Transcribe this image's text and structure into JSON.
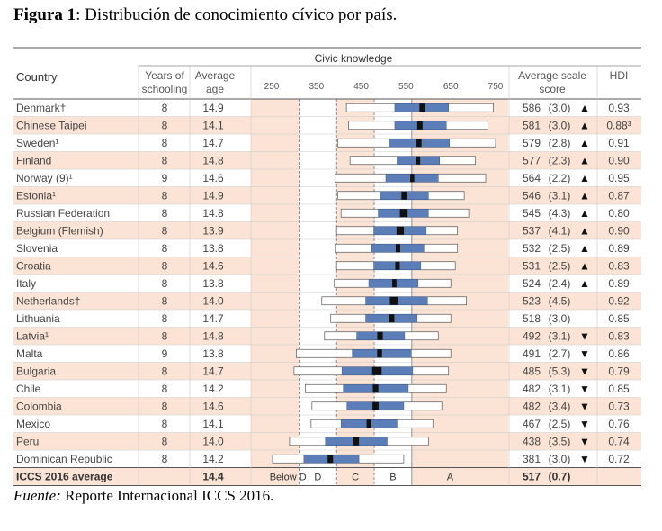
{
  "figure": {
    "label": "Figura 1",
    "title": ": Distribución de conocimiento cívico por país.",
    "source_label": "Fuente:",
    "source_text": " Reporte Internacional ICCS 2016."
  },
  "table": {
    "group_header": "Civic knowledge",
    "col_country": "Country",
    "col_years": [
      "Years of",
      "schooling"
    ],
    "col_age": [
      "Average",
      "age"
    ],
    "col_score": [
      "Average scale",
      "score"
    ],
    "col_hdi": "HDI",
    "axis_ticks": [
      250,
      350,
      450,
      550,
      650,
      750
    ],
    "band_labels": [
      "Below D",
      "D",
      "C",
      "B",
      "A"
    ]
  },
  "chart_data": {
    "type": "table",
    "xlim": [
      250,
      750
    ],
    "legend_colors": {
      "country_highlight": "#fbe4d5",
      "band_shade": "#fbe4d5",
      "confidence_bar": "#5b7db8",
      "mean_marker": "#111111",
      "outer_box": "#ffffff"
    },
    "cut_points": [
      311,
      395,
      479,
      563
    ],
    "rows": [
      {
        "country": "Denmark†",
        "years": "8",
        "age": "14.9",
        "score": "586",
        "se": "(3.0)",
        "sig": "up",
        "hdi": "0.93",
        "highlight": false,
        "p5": 417,
        "p25": 525,
        "p75": 645,
        "p95": 745
      },
      {
        "country": "Chinese Taipei",
        "years": "8",
        "age": "14.1",
        "score": "581",
        "se": "(3.0)",
        "sig": "up",
        "hdi": "0.88³",
        "highlight": true,
        "p5": 422,
        "p25": 525,
        "p75": 640,
        "p95": 733
      },
      {
        "country": "Sweden¹",
        "years": "8",
        "age": "14.7",
        "score": "579",
        "se": "(2.8)",
        "sig": "up",
        "hdi": "0.91",
        "highlight": false,
        "p5": 398,
        "p25": 512,
        "p75": 647,
        "p95": 750
      },
      {
        "country": "Finland",
        "years": "8",
        "age": "14.8",
        "score": "577",
        "se": "(2.3)",
        "sig": "up",
        "hdi": "0.90",
        "highlight": true,
        "p5": 425,
        "p25": 530,
        "p75": 625,
        "p95": 705
      },
      {
        "country": "Norway (9)¹",
        "years": "9",
        "age": "14.6",
        "score": "564",
        "se": "(2.2)",
        "sig": "up",
        "hdi": "0.95",
        "highlight": false,
        "p5": 392,
        "p25": 505,
        "p75": 622,
        "p95": 728
      },
      {
        "country": "Estonia¹",
        "years": "8",
        "age": "14.9",
        "score": "546",
        "se": "(3.1)",
        "sig": "up",
        "hdi": "0.87",
        "highlight": true,
        "p5": 398,
        "p25": 492,
        "p75": 600,
        "p95": 680
      },
      {
        "country": "Russian Federation",
        "years": "8",
        "age": "14.8",
        "score": "545",
        "se": "(4.3)",
        "sig": "up",
        "hdi": "0.80",
        "highlight": false,
        "p5": 405,
        "p25": 488,
        "p75": 600,
        "p95": 690
      },
      {
        "country": "Belgium (Flemish)",
        "years": "8",
        "age": "13.9",
        "score": "537",
        "se": "(4.1)",
        "sig": "up",
        "hdi": "0.90",
        "highlight": true,
        "p5": 395,
        "p25": 478,
        "p75": 595,
        "p95": 665
      },
      {
        "country": "Slovenia",
        "years": "8",
        "age": "13.8",
        "score": "532",
        "se": "(2.5)",
        "sig": "up",
        "hdi": "0.89",
        "highlight": false,
        "p5": 393,
        "p25": 473,
        "p75": 590,
        "p95": 665
      },
      {
        "country": "Croatia",
        "years": "8",
        "age": "14.6",
        "score": "531",
        "se": "(2.5)",
        "sig": "up",
        "hdi": "0.83",
        "highlight": true,
        "p5": 395,
        "p25": 478,
        "p75": 583,
        "p95": 660
      },
      {
        "country": "Italy",
        "years": "8",
        "age": "13.8",
        "score": "524",
        "se": "(2.4)",
        "sig": "up",
        "hdi": "0.89",
        "highlight": false,
        "p5": 390,
        "p25": 467,
        "p75": 577,
        "p95": 650
      },
      {
        "country": "Netherlands†",
        "years": "8",
        "age": "14.0",
        "score": "523",
        "se": "(4.5)",
        "sig": "none",
        "hdi": "0.92",
        "highlight": true,
        "p5": 362,
        "p25": 460,
        "p75": 598,
        "p95": 685
      },
      {
        "country": "Lithuania",
        "years": "8",
        "age": "14.7",
        "score": "518",
        "se": "(3.0)",
        "sig": "none",
        "hdi": "0.85",
        "highlight": false,
        "p5": 382,
        "p25": 460,
        "p75": 575,
        "p95": 650
      },
      {
        "country": "Latvia¹",
        "years": "8",
        "age": "14.8",
        "score": "492",
        "se": "(3.1)",
        "sig": "down",
        "hdi": "0.83",
        "highlight": true,
        "p5": 368,
        "p25": 440,
        "p75": 547,
        "p95": 622
      },
      {
        "country": "Malta",
        "years": "9",
        "age": "13.8",
        "score": "491",
        "se": "(2.7)",
        "sig": "down",
        "hdi": "0.86",
        "highlight": false,
        "p5": 305,
        "p25": 430,
        "p75": 562,
        "p95": 650
      },
      {
        "country": "Bulgaria",
        "years": "8",
        "age": "14.7",
        "score": "485",
        "se": "(5.3)",
        "sig": "down",
        "hdi": "0.79",
        "highlight": true,
        "p5": 300,
        "p25": 407,
        "p75": 565,
        "p95": 645
      },
      {
        "country": "Chile",
        "years": "8",
        "age": "14.2",
        "score": "482",
        "se": "(3.1)",
        "sig": "down",
        "hdi": "0.85",
        "highlight": false,
        "p5": 325,
        "p25": 410,
        "p75": 555,
        "p95": 640
      },
      {
        "country": "Colombia",
        "years": "8",
        "age": "14.6",
        "score": "482",
        "se": "(3.4)",
        "sig": "down",
        "hdi": "0.73",
        "highlight": true,
        "p5": 340,
        "p25": 418,
        "p75": 545,
        "p95": 630
      },
      {
        "country": "Mexico",
        "years": "8",
        "age": "14.1",
        "score": "467",
        "se": "(2.5)",
        "sig": "down",
        "hdi": "0.76",
        "highlight": false,
        "p5": 338,
        "p25": 405,
        "p75": 530,
        "p95": 610
      },
      {
        "country": "Peru",
        "years": "8",
        "age": "14.0",
        "score": "438",
        "se": "(3.5)",
        "sig": "down",
        "hdi": "0.74",
        "highlight": true,
        "p5": 290,
        "p25": 370,
        "p75": 508,
        "p95": 600
      },
      {
        "country": "Dominican Republic",
        "years": "8",
        "age": "14.2",
        "score": "381",
        "se": "(3.0)",
        "sig": "down",
        "hdi": "0.72",
        "highlight": false,
        "p5": 252,
        "p25": 322,
        "p75": 445,
        "p95": 545
      }
    ],
    "average": {
      "label": "ICCS 2016 average",
      "age": "14.4",
      "score": "517",
      "se": "(0.7)"
    }
  }
}
